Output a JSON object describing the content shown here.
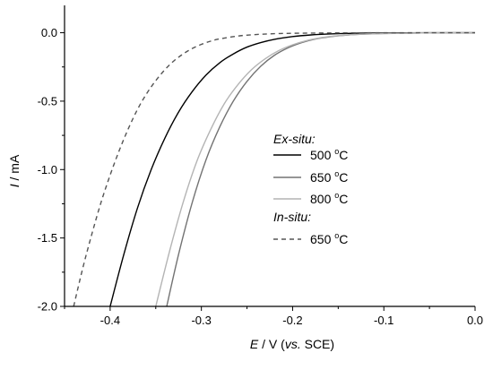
{
  "chart_data": {
    "type": "line",
    "xlabel": {
      "italic": "E",
      "rest1": " / V (",
      "italic2": "vs.",
      "rest2": " SCE)"
    },
    "ylabel": {
      "italic": "I",
      "rest": " / mA"
    },
    "xlim": [
      -0.45,
      0.0
    ],
    "ylim": [
      -2.0,
      0.2
    ],
    "x_ticks": [
      -0.4,
      -0.3,
      -0.2,
      -0.1,
      0.0
    ],
    "x_tick_labels": [
      "-0.4",
      "-0.3",
      "-0.2",
      "-0.1",
      "0.0"
    ],
    "y_ticks": [
      0.0,
      -0.5,
      -1.0,
      -1.5,
      -2.0
    ],
    "y_tick_labels": [
      "0.0",
      "-0.5",
      "-1.0",
      "-1.5",
      "-2.0"
    ],
    "grid": false,
    "legend_position": "center-right",
    "legend": {
      "group1": "Ex-situ:",
      "group2": "In-situ:",
      "degree_mark": "o"
    },
    "series": [
      {
        "name": "500 C",
        "label_value": "500",
        "label_unit": "C",
        "color": "#000000",
        "dash": "solid",
        "x": [
          -0.4,
          -0.385,
          -0.37,
          -0.355,
          -0.34,
          -0.325,
          -0.31,
          -0.295,
          -0.28,
          -0.265,
          -0.25,
          -0.235,
          -0.22,
          -0.2,
          -0.18,
          -0.16,
          -0.14,
          -0.12,
          -0.1,
          -0.08,
          -0.05,
          0.0
        ],
        "y": [
          -2.0,
          -1.62,
          -1.28,
          -1.0,
          -0.77,
          -0.58,
          -0.43,
          -0.31,
          -0.22,
          -0.155,
          -0.105,
          -0.072,
          -0.048,
          -0.028,
          -0.016,
          -0.009,
          -0.005,
          -0.003,
          -0.002,
          -0.001,
          0.0,
          0.0
        ]
      },
      {
        "name": "650 C",
        "label_value": "650",
        "label_unit": "C",
        "color": "#737373",
        "dash": "solid",
        "x": [
          -0.338,
          -0.325,
          -0.31,
          -0.295,
          -0.28,
          -0.265,
          -0.25,
          -0.235,
          -0.22,
          -0.205,
          -0.19,
          -0.175,
          -0.16,
          -0.14,
          -0.12,
          -0.1,
          -0.08,
          -0.06,
          -0.04,
          0.0
        ],
        "y": [
          -2.0,
          -1.62,
          -1.24,
          -0.93,
          -0.69,
          -0.5,
          -0.355,
          -0.245,
          -0.165,
          -0.11,
          -0.072,
          -0.046,
          -0.03,
          -0.017,
          -0.01,
          -0.006,
          -0.004,
          -0.002,
          -0.001,
          0.0
        ]
      },
      {
        "name": "800 C",
        "label_value": "800",
        "label_unit": "C",
        "color": "#b4b4b4",
        "dash": "solid",
        "x": [
          -0.35,
          -0.335,
          -0.32,
          -0.305,
          -0.29,
          -0.275,
          -0.26,
          -0.245,
          -0.23,
          -0.215,
          -0.2,
          -0.185,
          -0.17,
          -0.155,
          -0.14,
          -0.12,
          -0.1,
          -0.08,
          -0.06,
          -0.04,
          0.0
        ],
        "y": [
          -2.0,
          -1.6,
          -1.24,
          -0.94,
          -0.71,
          -0.52,
          -0.38,
          -0.27,
          -0.19,
          -0.13,
          -0.088,
          -0.058,
          -0.038,
          -0.025,
          -0.016,
          -0.009,
          -0.006,
          -0.004,
          -0.002,
          -0.001,
          0.0
        ]
      },
      {
        "name": "650 C in-situ",
        "label_value": "650",
        "label_unit": "C",
        "color": "#555555",
        "dash": "dashed",
        "x": [
          -0.44,
          -0.43,
          -0.42,
          -0.41,
          -0.4,
          -0.39,
          -0.38,
          -0.37,
          -0.36,
          -0.35,
          -0.34,
          -0.33,
          -0.32,
          -0.31,
          -0.3,
          -0.29,
          -0.28,
          -0.26,
          -0.24,
          -0.22,
          -0.2,
          -0.17,
          -0.14,
          -0.1,
          -0.05,
          0.0
        ],
        "y": [
          -2.0,
          -1.72,
          -1.47,
          -1.24,
          -1.04,
          -0.86,
          -0.7,
          -0.56,
          -0.445,
          -0.35,
          -0.27,
          -0.205,
          -0.155,
          -0.115,
          -0.085,
          -0.062,
          -0.045,
          -0.024,
          -0.013,
          -0.007,
          -0.004,
          -0.002,
          -0.001,
          0.0,
          0.0,
          0.0
        ]
      }
    ]
  }
}
